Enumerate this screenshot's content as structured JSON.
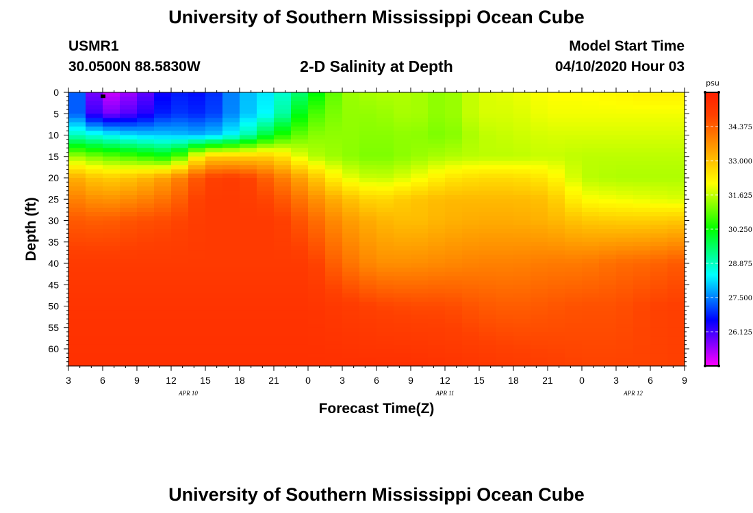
{
  "header": {
    "title": "University of Southern Mississippi Ocean Cube",
    "station": "USMR1",
    "location": "30.0500N 88.5830W",
    "chart_title": "2-D Salinity at Depth",
    "model_start_label": "Model Start Time",
    "model_start_value": "04/10/2020 Hour 03"
  },
  "footer": {
    "title": "University of Southern Mississippi Ocean Cube"
  },
  "chart_data": {
    "type": "heatmap",
    "title": "2-D Salinity at Depth",
    "xlabel": "Forecast Time(Z)",
    "ylabel": "Depth (ft)",
    "x_tick_labels": [
      "3",
      "6",
      "9",
      "12",
      "15",
      "18",
      "21",
      "0",
      "3",
      "6",
      "9",
      "12",
      "15",
      "18",
      "21",
      "0",
      "3",
      "6",
      "9"
    ],
    "x_range_hours": [
      0,
      54
    ],
    "date_labels": [
      {
        "label": "APR 10",
        "hour": 10.5
      },
      {
        "label": "APR 11",
        "hour": 33
      },
      {
        "label": "APR 12",
        "hour": 49.5
      }
    ],
    "y_tick_labels": [
      "0",
      "5",
      "10",
      "15",
      "20",
      "25",
      "30",
      "35",
      "40",
      "45",
      "50",
      "55",
      "60"
    ],
    "y_range_ft": [
      0,
      64
    ],
    "colorbar": {
      "unit": "psu",
      "min": 24.75,
      "max": 35.75,
      "labels": [
        "34.375",
        "33.000",
        "31.625",
        "30.250",
        "28.875",
        "27.500",
        "26.125"
      ],
      "colors": [
        "#ff00ff",
        "#8000ff",
        "#0000ff",
        "#0080ff",
        "#00ffff",
        "#00ff80",
        "#00ff00",
        "#80ff00",
        "#ffff00",
        "#ffc000",
        "#ff8000",
        "#ff4000",
        "#ff2000"
      ]
    },
    "surface_marker": {
      "hour": 3,
      "depth_ft": 1
    },
    "salinity_grid": {
      "x_hours": [
        0,
        3,
        6,
        9,
        12,
        15,
        18,
        21,
        24,
        27,
        30,
        33,
        36,
        39,
        42,
        45,
        48,
        51,
        54
      ],
      "depths_ft": [
        0,
        5,
        10,
        15,
        20,
        25,
        30,
        40,
        50,
        64
      ],
      "values": [
        [
          28.0,
          25.0,
          25.6,
          26.8,
          26.6,
          27.8,
          28.4,
          29.8,
          31.3,
          31.5,
          31.5,
          31.2,
          31.8,
          31.9,
          32.1,
          32.1,
          32.2,
          32.3,
          32.3
        ],
        [
          27.8,
          25.6,
          26.1,
          27.0,
          26.8,
          27.8,
          28.6,
          30.6,
          31.3,
          31.3,
          31.5,
          31.2,
          31.8,
          31.8,
          32.0,
          32.0,
          32.0,
          32.0,
          32.0
        ],
        [
          29.0,
          28.5,
          28.1,
          28.0,
          27.8,
          28.6,
          30.2,
          31.2,
          31.3,
          31.2,
          31.3,
          31.1,
          31.6,
          31.7,
          31.8,
          31.8,
          31.8,
          31.8,
          31.8
        ],
        [
          31.5,
          31.0,
          30.7,
          30.2,
          32.8,
          32.8,
          32.8,
          31.6,
          31.3,
          31.1,
          31.3,
          31.5,
          31.6,
          31.6,
          31.7,
          31.6,
          31.6,
          31.6,
          31.6
        ],
        [
          33.4,
          32.8,
          33.0,
          33.6,
          34.8,
          35.0,
          34.2,
          33.2,
          32.0,
          31.6,
          31.9,
          32.4,
          32.6,
          32.6,
          32.4,
          31.6,
          31.5,
          31.5,
          31.5
        ],
        [
          34.0,
          33.6,
          33.8,
          34.2,
          35.0,
          35.0,
          34.7,
          33.9,
          33.1,
          32.6,
          32.9,
          33.1,
          33.1,
          33.1,
          33.0,
          32.1,
          32.0,
          31.9,
          31.8
        ],
        [
          34.5,
          34.4,
          34.6,
          34.7,
          35.0,
          35.0,
          35.0,
          34.4,
          33.6,
          33.2,
          33.0,
          33.2,
          33.3,
          33.3,
          33.2,
          32.9,
          32.8,
          32.8,
          32.9
        ],
        [
          35.0,
          35.0,
          35.0,
          35.0,
          35.0,
          35.0,
          35.0,
          35.0,
          34.2,
          33.7,
          33.7,
          33.8,
          33.9,
          33.9,
          34.0,
          34.0,
          34.2,
          34.3,
          34.5
        ],
        [
          35.2,
          35.2,
          35.2,
          35.2,
          35.2,
          35.2,
          35.2,
          35.2,
          35.0,
          34.8,
          34.7,
          34.7,
          34.5,
          34.4,
          34.5,
          34.6,
          34.6,
          34.8,
          34.9
        ],
        [
          35.3,
          35.3,
          35.3,
          35.3,
          35.3,
          35.3,
          35.3,
          35.3,
          35.3,
          35.3,
          35.3,
          35.2,
          35.1,
          35.0,
          34.9,
          34.8,
          34.8,
          34.8,
          34.9
        ]
      ]
    }
  }
}
